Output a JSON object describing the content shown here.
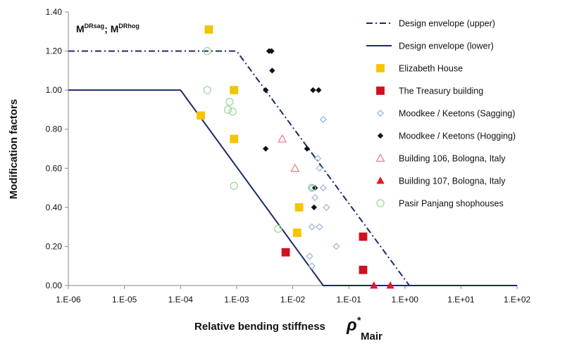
{
  "chart_data": {
    "type": "scatter",
    "title": "",
    "xlabel": "Relative bending stiffness",
    "ylabel": "Modification factors",
    "x_symbol": "ρ",
    "x_symbol_super": "*",
    "x_symbol_sub": "Mair",
    "in_plot_label": {
      "m1": "M",
      "s1": "DRsag",
      "sep": "; ",
      "m2": "M",
      "s2": "DRhog"
    },
    "x_scale": "log",
    "xlim": [
      1e-06,
      100
    ],
    "ylim": [
      0,
      1.4
    ],
    "x_tick_values": [
      1e-06,
      1e-05,
      0.0001,
      0.001,
      0.01,
      0.1,
      1,
      10,
      100
    ],
    "x_ticks": [
      "1.E-06",
      "1.E-05",
      "1.E-04",
      "1.E-03",
      "1.E-02",
      "1.E-01",
      "1.E+00",
      "1.E+01",
      "1.E+02"
    ],
    "y_tick_values": [
      0,
      0.2,
      0.4,
      0.6,
      0.8,
      1.0,
      1.2,
      1.4
    ],
    "y_ticks": [
      "0.00",
      "0.20",
      "0.40",
      "0.60",
      "0.80",
      "1.00",
      "1.20",
      "1.40"
    ],
    "grid": false,
    "legend_position": "right",
    "series": [
      {
        "name": "Design envelope (upper)",
        "kind": "line",
        "style": "dashdot",
        "color": "#1a2a6c",
        "x": [
          1e-06,
          0.001,
          1.2
        ],
        "y": [
          1.2,
          1.2,
          0
        ]
      },
      {
        "name": "Design envelope (lower)",
        "kind": "line",
        "style": "solid",
        "color": "#1a2a6c",
        "x": [
          1e-06,
          0.0001,
          0.035,
          100
        ],
        "y": [
          1.0,
          1.0,
          0,
          0
        ]
      },
      {
        "name": "Elizabeth House",
        "kind": "marker",
        "marker": "square",
        "color": "#f5c400",
        "x": [
          0.00032,
          0.00023,
          0.0009,
          0.0009,
          0.013,
          0.012
        ],
        "y": [
          1.31,
          0.87,
          1.0,
          0.75,
          0.4,
          0.27
        ]
      },
      {
        "name": "The Treasury building",
        "kind": "marker",
        "marker": "square",
        "color": "#d01020",
        "x": [
          0.0075,
          0.18,
          0.18
        ],
        "y": [
          0.17,
          0.25,
          0.08
        ]
      },
      {
        "name": "Moodkee / Keetons (Sagging)",
        "kind": "marker",
        "marker": "diamond-open",
        "color": "#9fb8dd",
        "x": [
          0.035,
          0.028,
          0.03,
          0.022,
          0.04,
          0.025,
          0.06,
          0.022,
          0.03,
          0.02,
          0.022,
          0.035
        ],
        "y": [
          0.85,
          0.65,
          0.6,
          0.5,
          0.4,
          0.45,
          0.2,
          0.3,
          0.3,
          0.15,
          0.1,
          0.5
        ]
      },
      {
        "name": "Moodkee / Keetons (Hogging)",
        "kind": "marker",
        "marker": "diamond",
        "color": "#111111",
        "x": [
          0.0038,
          0.0042,
          0.0043,
          0.0033,
          0.023,
          0.029,
          0.0033,
          0.018,
          0.025,
          0.024
        ],
        "y": [
          1.2,
          1.2,
          1.1,
          1.0,
          1.0,
          1.0,
          0.7,
          0.7,
          0.5,
          0.4
        ]
      },
      {
        "name": "Building 106, Bologna, Italy",
        "kind": "marker",
        "marker": "triangle-open",
        "color": "#f08090",
        "x": [
          0.0065,
          0.011
        ],
        "y": [
          0.75,
          0.6
        ]
      },
      {
        "name": "Building 107, Bologna, Italy",
        "kind": "marker",
        "marker": "triangle",
        "color": "#e01828",
        "x": [
          0.28,
          0.55
        ],
        "y": [
          0.0,
          0.0
        ]
      },
      {
        "name": "Pasir Panjang shophouses",
        "kind": "marker",
        "marker": "circle-open",
        "color": "#9ed69e",
        "x": [
          0.0003,
          0.0003,
          0.00075,
          0.00085,
          0.0007,
          0.0009,
          0.0055,
          0.022
        ],
        "y": [
          1.2,
          1.0,
          0.94,
          0.89,
          0.9,
          0.51,
          0.29,
          0.5
        ]
      }
    ]
  }
}
